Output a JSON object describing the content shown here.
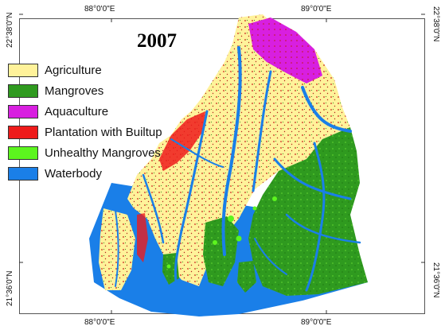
{
  "map": {
    "year": "2007",
    "graticule": {
      "top_lon_labels": [
        "88°0'0\"E",
        "89°0'0\"E"
      ],
      "bottom_lon_labels": [
        "88°0'0\"E",
        "89°0'0\"E"
      ],
      "left_lat_labels": [
        "22°38'0\"N",
        "21°36'0\"N"
      ],
      "right_lat_labels": [
        "22°38'0\"N",
        "21°36'0\"N"
      ]
    },
    "legend": [
      {
        "label": "Agriculture",
        "color": "#fff29a"
      },
      {
        "label": "Mangroves",
        "color": "#2f9a1f"
      },
      {
        "label": "Aquaculture",
        "color": "#d81fe0"
      },
      {
        "label": "Plantation with Builtup",
        "color": "#ee1b1b"
      },
      {
        "label": "Unhealthy Mangroves",
        "color": "#5cf51e"
      },
      {
        "label": "Waterbody",
        "color": "#1a7fe8"
      }
    ]
  }
}
